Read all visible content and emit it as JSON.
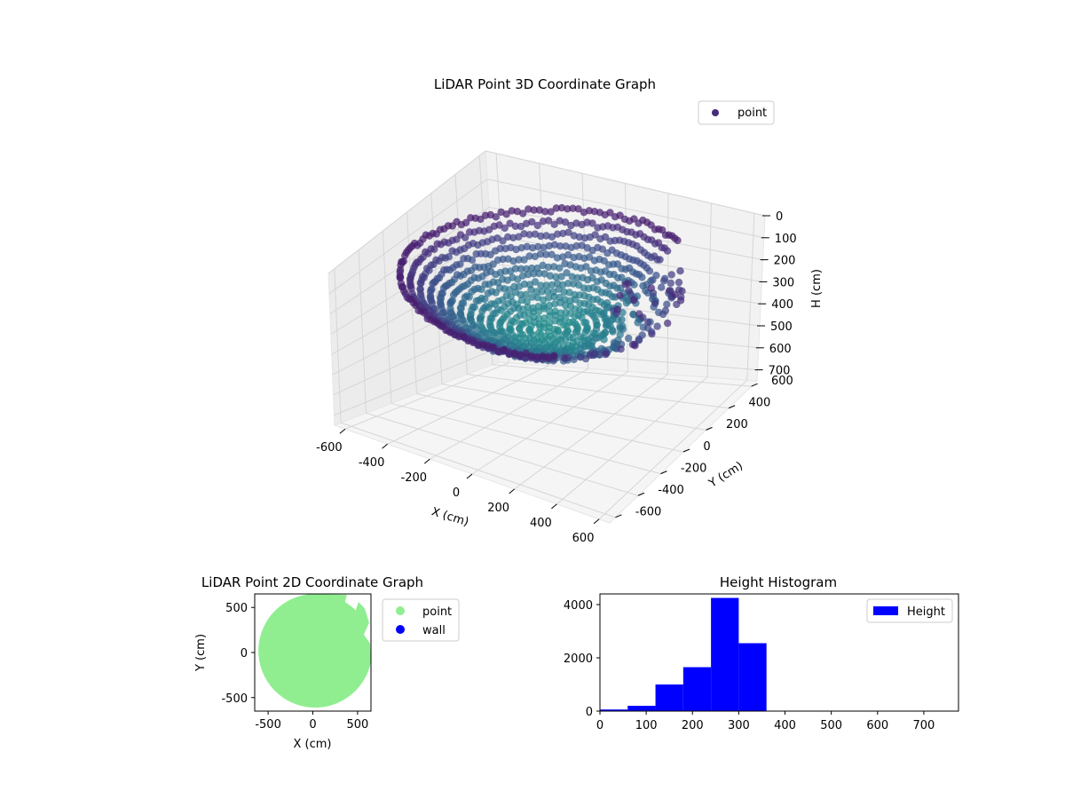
{
  "chart_data": [
    {
      "id": "chart3d",
      "type": "scatter",
      "title": "LiDAR Point 3D Coordinate Graph",
      "xlabel": "X (cm)",
      "ylabel": "Y (cm)",
      "zlabel": "H (cm)",
      "xlim": [
        -650,
        650
      ],
      "ylim": [
        -650,
        650
      ],
      "zlim": [
        0,
        750
      ],
      "z_inverted": true,
      "xticks": [
        -600,
        -400,
        -200,
        0,
        200,
        400,
        600
      ],
      "yticks": [
        -600,
        -400,
        -200,
        0,
        200,
        400,
        600
      ],
      "zticks": [
        0,
        100,
        200,
        300,
        400,
        500,
        600,
        700
      ],
      "legend": {
        "entries": [
          {
            "label": "point",
            "color": "#472c7a"
          }
        ],
        "placement": "top-right"
      },
      "colormap": "viridis",
      "series": [
        {
          "name": "point",
          "shape": "bowl-shaped point cloud, rim radius ~600 cm, depth 100-350 cm, open on +X side"
        }
      ]
    },
    {
      "id": "chart2d",
      "type": "scatter",
      "title": "LiDAR Point 2D Coordinate Graph",
      "xlabel": "X (cm)",
      "ylabel": "Y (cm)",
      "xlim": [
        -650,
        650
      ],
      "ylim": [
        -650,
        650
      ],
      "xticks": [
        -500,
        0,
        500
      ],
      "yticks": [
        -500,
        0,
        500
      ],
      "legend": {
        "entries": [
          {
            "label": "point",
            "color": "#90ee90"
          },
          {
            "label": "wall",
            "color": "#0000ff"
          }
        ],
        "placement": "outside-right"
      },
      "series": [
        {
          "name": "point",
          "color": "#90ee90",
          "region": "disc radius ~640 cm with notches on the +X side"
        },
        {
          "name": "wall",
          "color": "#0000ff",
          "values": []
        }
      ]
    },
    {
      "id": "hist",
      "type": "bar",
      "title": "Height Histogram",
      "xlim": [
        0,
        775
      ],
      "ylim": [
        0,
        4400
      ],
      "xticks": [
        0,
        100,
        200,
        300,
        400,
        500,
        600,
        700
      ],
      "yticks": [
        0,
        2000,
        4000
      ],
      "legend": {
        "entries": [
          {
            "label": "Height",
            "color": "#0000ff"
          }
        ],
        "placement": "top-right"
      },
      "bin_edges": [
        0,
        60,
        120,
        180,
        240,
        300,
        360,
        420,
        480,
        540,
        600,
        660,
        720,
        780
      ],
      "values": [
        60,
        200,
        1000,
        1650,
        4250,
        2550,
        0,
        0,
        0,
        0,
        0,
        0,
        0
      ],
      "color": "#0000ff"
    }
  ]
}
